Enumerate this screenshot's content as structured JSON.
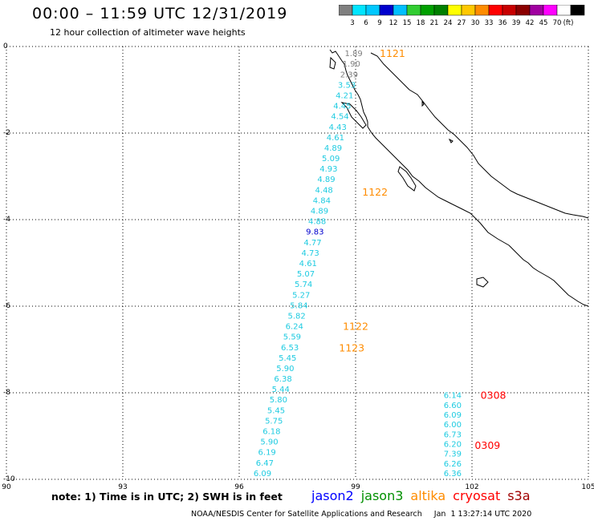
{
  "header": {
    "title": "00:00 – 11:59 UTC 12/31/2019",
    "subtitle": "12 hour collection of altimeter wave heights"
  },
  "colorbar": {
    "ticks": [
      "3",
      "6",
      "9",
      "12",
      "15",
      "18",
      "21",
      "24",
      "27",
      "30",
      "33",
      "36",
      "39",
      "42",
      "45",
      "70"
    ],
    "unit": "(ft)",
    "colors": [
      "#808080",
      "#00e5ff",
      "#00c8ff",
      "#0000cd",
      "#00bfff",
      "#32cd32",
      "#00a000",
      "#008000",
      "#ffff00",
      "#ffc800",
      "#ff8c00",
      "#ff0000",
      "#c80000",
      "#8b0000",
      "#a000a0",
      "#ff00ff",
      "#ffffff",
      "#000000"
    ]
  },
  "axes": {
    "x_ticks": [
      {
        "value": 90,
        "label": "90"
      },
      {
        "value": 93,
        "label": "93"
      },
      {
        "value": 96,
        "label": "96"
      },
      {
        "value": 99,
        "label": "99"
      },
      {
        "value": 102,
        "label": "102"
      },
      {
        "value": 105,
        "label": "105"
      }
    ],
    "y_ticks": [
      {
        "value": 0,
        "label": "0"
      },
      {
        "value": -2,
        "label": "-2"
      },
      {
        "value": -4,
        "label": "-4"
      },
      {
        "value": -6,
        "label": "-6"
      },
      {
        "value": -8,
        "label": "-8"
      },
      {
        "value": -10,
        "label": "-10"
      }
    ],
    "xlim": [
      90,
      105
    ],
    "ylim": [
      -10,
      0
    ]
  },
  "chart_data": {
    "type": "scatter",
    "track1": {
      "color": "#1ecbe1",
      "start": [
        98.95,
        -0.15
      ],
      "end": [
        96.6,
        -9.85
      ],
      "values": [
        "1.89",
        "1.90",
        "2.39",
        "3.53",
        "4.21",
        "4.45",
        "4.54",
        "4.43",
        "4.61",
        "4.89",
        "5.09",
        "4.93",
        "4.89",
        "4.48",
        "4.84",
        "4.89",
        "4.88",
        "9.83",
        "4.77",
        "4.73",
        "4.61",
        "5.07",
        "5.74",
        "5.27",
        "5.84",
        "5.82",
        "6.24",
        "5.59",
        "6.53",
        "5.45",
        "5.90",
        "6.38",
        "5.44",
        "5.80",
        "5.45",
        "5.75",
        "6.18",
        "5.90",
        "6.19",
        "6.47",
        "6.09"
      ],
      "value_colors": {
        "0": "#808080",
        "1": "#808080",
        "2": "#808080",
        "17": "#0000cd"
      }
    },
    "track2": {
      "color": "#1ecbe1",
      "start": [
        101.5,
        -8.05
      ],
      "end": [
        101.5,
        -9.85
      ],
      "values": [
        "6.14",
        "6.60",
        "6.09",
        "6.00",
        "6.73",
        "6.20",
        "7.39",
        "6.26",
        "6.36"
      ]
    },
    "time_labels": [
      {
        "text": "1121",
        "lon": 99.95,
        "lat": -0.15,
        "color": "#ff8c00"
      },
      {
        "text": "1122",
        "lon": 99.5,
        "lat": -3.35,
        "color": "#ff8c00"
      },
      {
        "text": "1122",
        "lon": 99.0,
        "lat": -6.45,
        "color": "#ff8c00"
      },
      {
        "text": "1123",
        "lon": 98.9,
        "lat": -6.95,
        "color": "#ff8c00"
      },
      {
        "text": "0308",
        "lon": 102.55,
        "lat": -8.05,
        "color": "#ff0000"
      },
      {
        "text": "0309",
        "lon": 102.4,
        "lat": -9.2,
        "color": "#ff0000"
      }
    ]
  },
  "footer": {
    "note": "note:  1) Time is in UTC;  2) SWH is in feet",
    "legend": [
      {
        "label": "jason2",
        "color": "#0000ff"
      },
      {
        "label": "jason3",
        "color": "#009000"
      },
      {
        "label": "altika",
        "color": "#ff8c00"
      },
      {
        "label": "cryosat",
        "color": "#ff0000"
      },
      {
        "label": "s3a",
        "color": "#a00000"
      }
    ],
    "credit": "NOAA/NESDIS Center for Satellite Applications and Research     Jan  1 13:27:14 UTC 2020"
  }
}
